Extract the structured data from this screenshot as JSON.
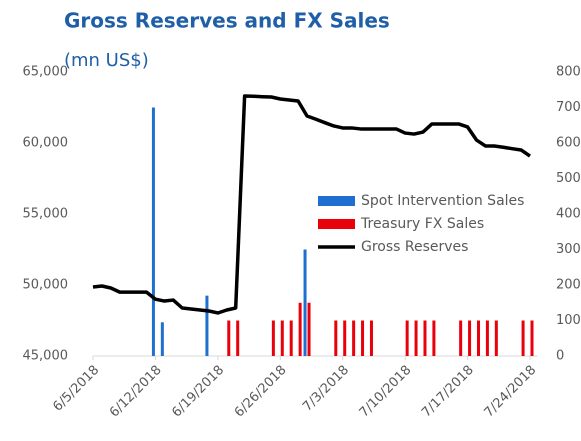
{
  "chart_data": {
    "type": "bar-line",
    "title": "Gross Reserves and FX Sales",
    "subtitle": "(mn US$)",
    "categories": [
      "6/5/2018",
      null,
      null,
      null,
      null,
      null,
      null,
      "6/12/2018",
      null,
      null,
      null,
      null,
      null,
      null,
      "6/19/2018",
      null,
      null,
      null,
      null,
      null,
      null,
      "6/26/2018",
      null,
      null,
      null,
      null,
      null,
      null,
      "7/3/2018",
      null,
      null,
      null,
      null,
      null,
      null,
      "7/10/2018",
      null,
      null,
      null,
      null,
      null,
      null,
      "7/17/2018",
      null,
      null,
      null,
      null,
      null,
      null,
      "7/24/2018"
    ],
    "series": [
      {
        "name": "Spot Intervention Sales",
        "type": "bar",
        "axis": "y2",
        "color": "#1f6fd1",
        "values": [
          null,
          null,
          null,
          null,
          null,
          null,
          null,
          700,
          95,
          null,
          null,
          null,
          null,
          170,
          null,
          null,
          null,
          null,
          null,
          null,
          null,
          null,
          null,
          null,
          300,
          null,
          null,
          null,
          null,
          null,
          null,
          null,
          null,
          null,
          null,
          null,
          null,
          null,
          null,
          null,
          null,
          null,
          null,
          null,
          null,
          null,
          null,
          null,
          null,
          null
        ]
      },
      {
        "name": "Treasury FX Sales",
        "type": "bar",
        "axis": "y2",
        "color": "#e8000b",
        "values": [
          null,
          null,
          null,
          null,
          null,
          null,
          null,
          null,
          null,
          null,
          null,
          null,
          null,
          null,
          null,
          100,
          100,
          null,
          null,
          null,
          100,
          100,
          100,
          150,
          150,
          null,
          null,
          100,
          100,
          100,
          100,
          100,
          null,
          null,
          null,
          100,
          100,
          100,
          100,
          null,
          null,
          100,
          100,
          100,
          100,
          100,
          null,
          null,
          100,
          100
        ]
      },
      {
        "name": "Gross Reserves",
        "type": "line",
        "axis": "y",
        "color": "#000000",
        "values": [
          49860,
          49930,
          49790,
          49500,
          49500,
          49500,
          49500,
          49000,
          48870,
          48940,
          48380,
          48310,
          48240,
          48170,
          48030,
          48240,
          48380,
          63310,
          63290,
          63260,
          63240,
          63100,
          63030,
          62960,
          61900,
          61670,
          61430,
          61200,
          61060,
          61060,
          60990,
          60990,
          60990,
          60990,
          60990,
          60700,
          60630,
          60770,
          61340,
          61340,
          61340,
          61340,
          61130,
          60210,
          59790,
          59790,
          59700,
          59600,
          59510,
          59080
        ]
      }
    ],
    "ylim": [
      45000,
      65000
    ],
    "yticks": [
      {
        "value": 45000,
        "label": "45,000"
      },
      {
        "value": 50000,
        "label": "50,000"
      },
      {
        "value": 55000,
        "label": "55,000"
      },
      {
        "value": 60000,
        "label": "60,000"
      },
      {
        "value": 65000,
        "label": "65,000"
      }
    ],
    "y2lim": [
      0,
      800
    ],
    "y2ticks": [
      0,
      100,
      200,
      300,
      400,
      500,
      600,
      700,
      800
    ],
    "legend": "right"
  }
}
